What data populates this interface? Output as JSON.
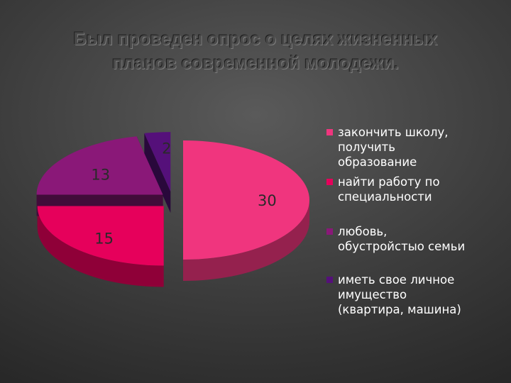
{
  "title": {
    "line1": "Был проведен опрос о целях жизненных",
    "line2": "планов современной молодежи."
  },
  "chart_data": {
    "type": "pie",
    "style": "3d-exploded",
    "legend_position": "right",
    "slices": [
      {
        "label": "закончить школу, получить образование",
        "value": 30,
        "color": "#f0357e"
      },
      {
        "label": "найти работу по специальности",
        "value": 15,
        "color": "#e6005b"
      },
      {
        "label": "любовь, обустройстыо семьи",
        "value": 13,
        "color": "#8a1878"
      },
      {
        "label": "иметь свое личное имущество (квартира, машина)",
        "value": 2,
        "color": "#55107a"
      }
    ],
    "legend": [
      {
        "lines": [
          "закончить школу,",
          "получить",
          "образование"
        ]
      },
      {
        "lines": [
          "найти работу по",
          "специальности"
        ]
      },
      {
        "lines": [
          "любовь,",
          "обустройстыо семьи"
        ]
      },
      {
        "lines": [
          "иметь свое личное",
          "имущество",
          "(квартира, машина)"
        ]
      }
    ]
  }
}
